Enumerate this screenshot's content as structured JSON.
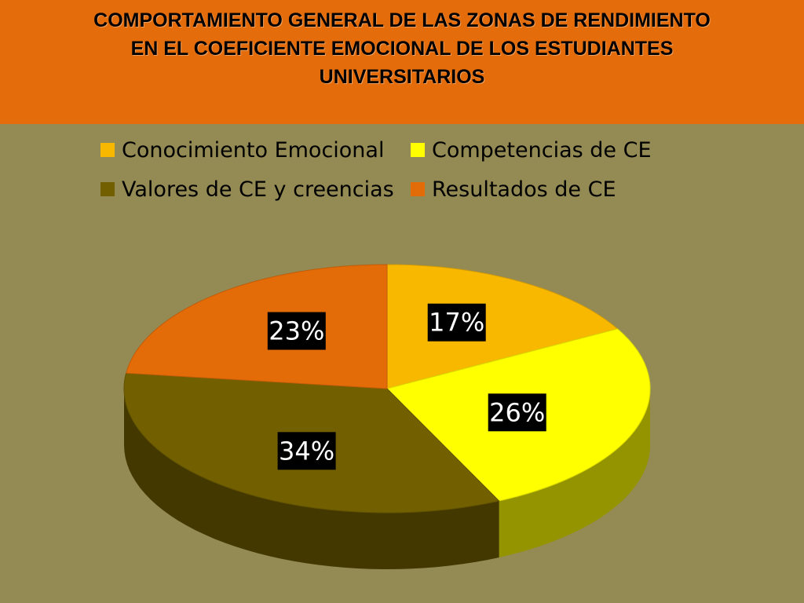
{
  "chart_data": {
    "type": "pie",
    "title": "COMPORTAMIENTO GENERAL DE LAS ZONAS DE RENDIMIENTO EN EL COEFICIENTE EMOCIONAL DE LOS ESTUDIANTES UNIVERSITARIOS",
    "title_lines": [
      "COMPORTAMIENTO GENERAL DE LAS ZONAS DE RENDIMIENTO",
      "EN EL COEFICIENTE EMOCIONAL DE LOS ESTUDIANTES",
      "UNIVERSITARIOS"
    ],
    "categories": [
      "Conocimiento Emocional",
      "Competencias  de CE",
      "Valores de CE y creencias",
      "Resultados de CE"
    ],
    "values": [
      17,
      26,
      34,
      23
    ],
    "data_labels": [
      "17%",
      "26%",
      "34%",
      "23%"
    ],
    "colors": [
      "#f9b800",
      "#ffff00",
      "#726000",
      "#e36c09"
    ],
    "legend_position": "top",
    "style": "3d"
  }
}
